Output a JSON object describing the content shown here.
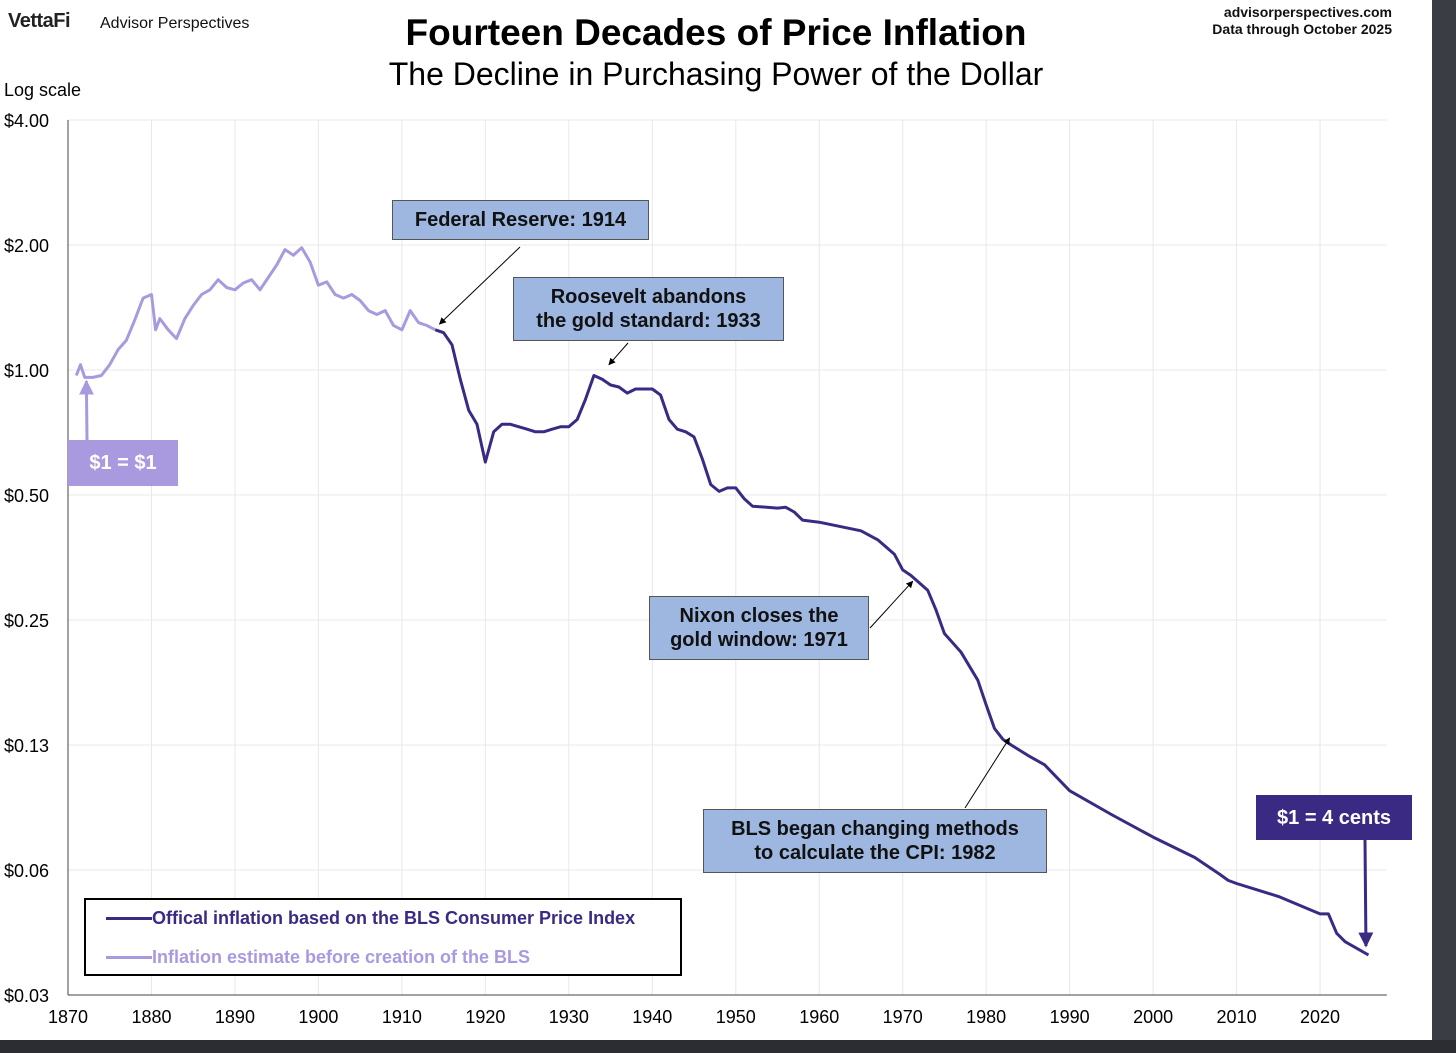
{
  "header": {
    "logo": "VettaFi",
    "brand": "Advisor Perspectives",
    "site": "advisorperspectives.com",
    "data_note": "Data through October 2025"
  },
  "colors": {
    "official": "#3b2a84",
    "estimate": "#a99ae0",
    "grid": "#e8e8e8",
    "annotation_box": "#9db7e0"
  },
  "chart_data": {
    "type": "line",
    "title": "Fourteen Decades of Price Inflation",
    "subtitle": "The Decline in Purchasing Power of the Dollar",
    "ylabel": "Log scale",
    "yscale": "log2",
    "ylim": [
      0.03125,
      4
    ],
    "xlim": [
      1870,
      2028
    ],
    "grid": true,
    "y_ticks": [
      {
        "value": 4,
        "label": "$4.00"
      },
      {
        "value": 2,
        "label": "$2.00"
      },
      {
        "value": 1,
        "label": "$1.00"
      },
      {
        "value": 0.5,
        "label": "$0.50"
      },
      {
        "value": 0.25,
        "label": "$0.25"
      },
      {
        "value": 0.125,
        "label": "$0.13"
      },
      {
        "value": 0.0625,
        "label": "$0.06"
      },
      {
        "value": 0.03125,
        "label": "$0.03"
      }
    ],
    "x_ticks": [
      1870,
      1880,
      1890,
      1900,
      1910,
      1920,
      1930,
      1940,
      1950,
      1960,
      1970,
      1980,
      1990,
      2000,
      2010,
      2020
    ],
    "legend_position": "bottom-left",
    "series": [
      {
        "name": "Offical inflation based on the BLS Consumer Price Index",
        "color": "#3b2a84",
        "x": [
          1914,
          1915,
          1916,
          1917,
          1918,
          1919,
          1920,
          1921,
          1922,
          1923,
          1925,
          1926,
          1927,
          1928,
          1929,
          1930,
          1931,
          1932,
          1933,
          1934,
          1935,
          1936,
          1937,
          1938,
          1939,
          1940,
          1941,
          1942,
          1943,
          1944,
          1945,
          1946,
          1947,
          1948,
          1949,
          1950,
          1951,
          1952,
          1955,
          1956,
          1957,
          1958,
          1960,
          1965,
          1967,
          1969,
          1970,
          1971,
          1973,
          1974,
          1975,
          1977,
          1979,
          1980,
          1981,
          1982,
          1983,
          1985,
          1987,
          1990,
          1995,
          2000,
          2005,
          2008,
          2009,
          2010,
          2015,
          2020,
          2021,
          2022,
          2023,
          2025.8
        ],
        "values": [
          1.25,
          1.23,
          1.15,
          0.95,
          0.8,
          0.74,
          0.6,
          0.71,
          0.74,
          0.74,
          0.72,
          0.71,
          0.71,
          0.72,
          0.73,
          0.73,
          0.76,
          0.85,
          0.97,
          0.95,
          0.92,
          0.91,
          0.88,
          0.9,
          0.9,
          0.9,
          0.87,
          0.76,
          0.72,
          0.71,
          0.69,
          0.61,
          0.53,
          0.51,
          0.52,
          0.52,
          0.49,
          0.47,
          0.465,
          0.467,
          0.455,
          0.435,
          0.43,
          0.41,
          0.39,
          0.36,
          0.33,
          0.32,
          0.295,
          0.264,
          0.232,
          0.209,
          0.179,
          0.156,
          0.137,
          0.129,
          0.125,
          0.118,
          0.112,
          0.097,
          0.085,
          0.075,
          0.067,
          0.061,
          0.059,
          0.058,
          0.054,
          0.049,
          0.049,
          0.044,
          0.042,
          0.039
        ]
      },
      {
        "name": "Inflation estimate before creation of the BLS",
        "color": "#a99ae0",
        "x": [
          1871,
          1871.5,
          1872,
          1873,
          1874,
          1875,
          1876,
          1877,
          1878,
          1879,
          1880,
          1880.5,
          1881,
          1882,
          1883,
          1884,
          1885,
          1886,
          1887,
          1888,
          1889,
          1890,
          1891,
          1892,
          1893,
          1894,
          1895,
          1896,
          1897,
          1898,
          1899,
          1900,
          1901,
          1902,
          1903,
          1904,
          1905,
          1906,
          1907,
          1908,
          1909,
          1910,
          1911,
          1912,
          1913,
          1914
        ],
        "values": [
          0.97,
          1.03,
          0.96,
          0.96,
          0.97,
          1.03,
          1.12,
          1.18,
          1.32,
          1.49,
          1.52,
          1.25,
          1.33,
          1.25,
          1.19,
          1.33,
          1.43,
          1.52,
          1.56,
          1.65,
          1.58,
          1.56,
          1.62,
          1.65,
          1.56,
          1.67,
          1.79,
          1.95,
          1.89,
          1.97,
          1.82,
          1.6,
          1.63,
          1.52,
          1.49,
          1.52,
          1.47,
          1.39,
          1.36,
          1.39,
          1.28,
          1.25,
          1.39,
          1.3,
          1.28,
          1.25
        ]
      }
    ],
    "annotations": [
      {
        "text": [
          "Federal Reserve: 1914"
        ],
        "year": 1914.5,
        "value": 1.29
      },
      {
        "text": [
          "Roosevelt abandons",
          "the gold standard: 1933"
        ],
        "year": 1934.8,
        "value": 1.03
      },
      {
        "text": [
          "Nixon closes the",
          "gold window: 1971"
        ],
        "year": 1971.2,
        "value": 0.31
      },
      {
        "text": [
          "BLS began  changing methods",
          "to calculate the CPI: 1982"
        ],
        "year": 1982.8,
        "value": 0.13
      },
      {
        "text": [
          "$1 = $1"
        ],
        "year": 1872.2,
        "value": 0.94
      },
      {
        "text": [
          "$1 = 4 cents"
        ],
        "year": 2025.5,
        "value": 0.041
      }
    ]
  }
}
